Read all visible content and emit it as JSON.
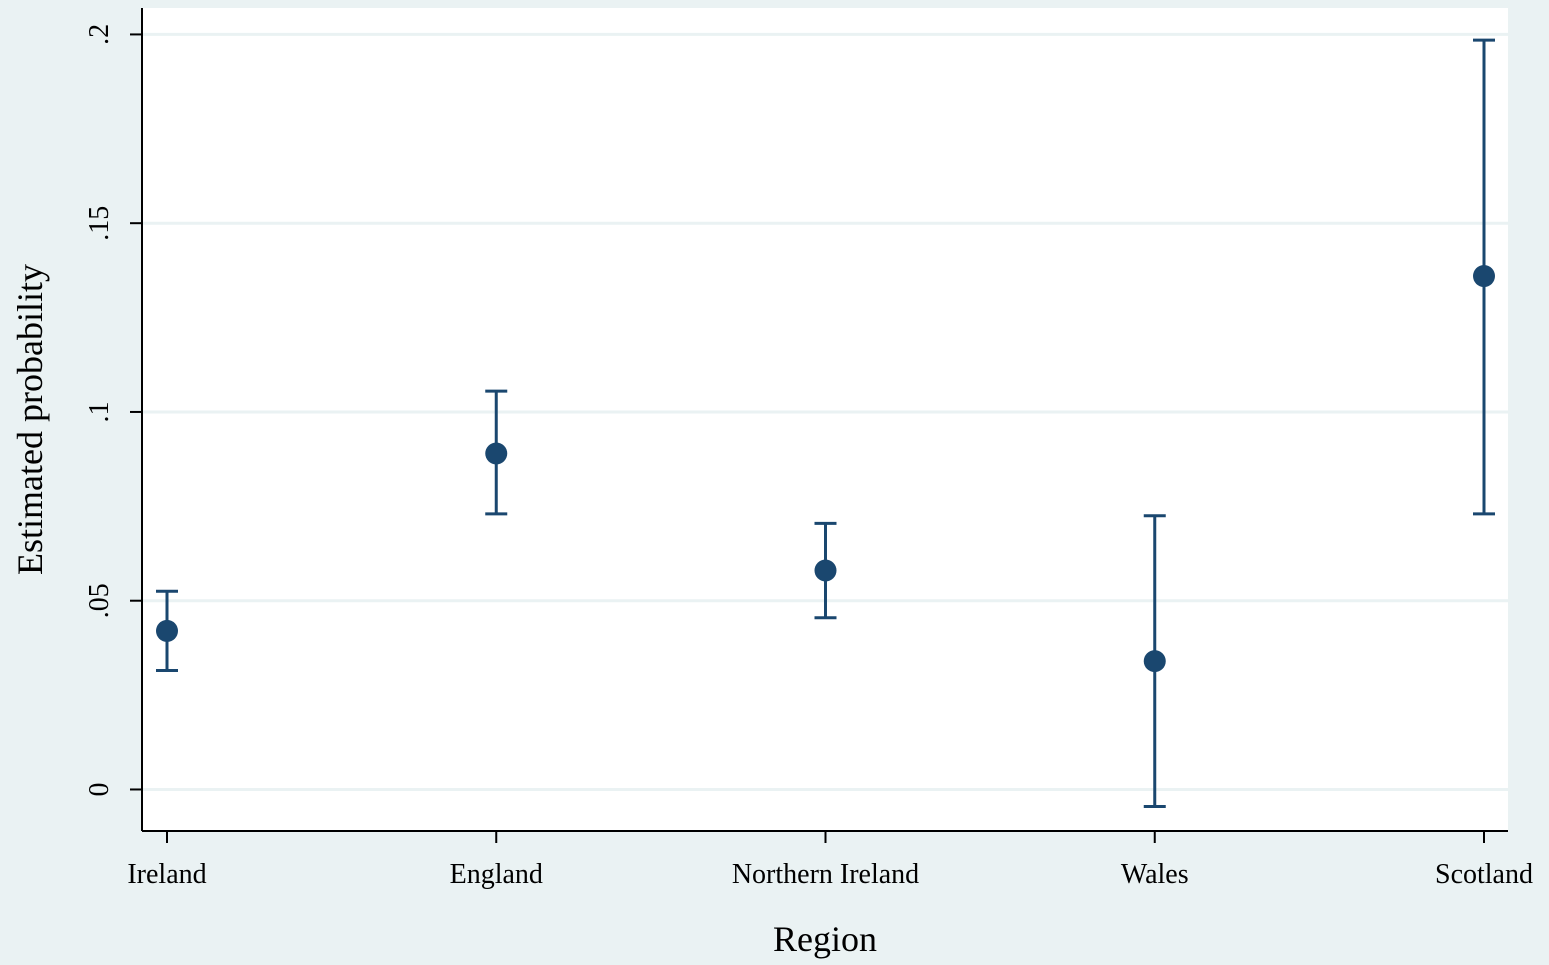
{
  "chart_data": {
    "type": "scatter",
    "subtype": "point-estimate-with-confidence-interval",
    "title": "",
    "xlabel": "Region",
    "ylabel": "Estimated probability",
    "categories": [
      "Ireland",
      "England",
      "Northern Ireland",
      "Wales",
      "Scotland"
    ],
    "estimates": [
      0.042,
      0.089,
      0.058,
      0.034,
      0.136
    ],
    "ci_lower": [
      0.0315,
      0.073,
      0.0455,
      -0.0045,
      0.073
    ],
    "ci_upper": [
      0.0525,
      0.1055,
      0.0705,
      0.0725,
      0.1985
    ],
    "ylim": [
      -0.011,
      0.207
    ],
    "yticks": [
      0,
      0.05,
      0.1,
      0.15,
      0.2
    ],
    "ytick_labels": [
      "0",
      ".05",
      ".1",
      ".15",
      ".2"
    ],
    "grid": "horizontal",
    "legend": "none"
  },
  "colors": {
    "background": "#eaf2f3",
    "plot_background": "#ffffff",
    "grid": "#eaf2f3",
    "marker": "#1a476f",
    "axis": "#000000",
    "text": "#000000"
  }
}
